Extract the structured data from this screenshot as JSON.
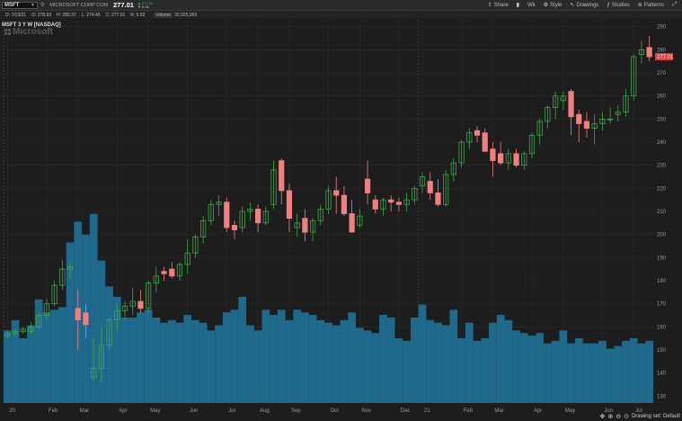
{
  "toolbar": {
    "symbol": "MSFT",
    "company": "MICROSOFT CORP COM",
    "last_price": "277.01",
    "change_up": "▲ 277.01",
    "change_pct": "▼ 0.00",
    "tools": [
      {
        "name": "share-tool",
        "icon": "share-icon",
        "glyph": "⇪",
        "label": "Share"
      },
      {
        "name": "lock-tool",
        "icon": "lock-icon",
        "glyph": "▮",
        "label": ""
      },
      {
        "name": "wk-tool",
        "icon": "",
        "glyph": "",
        "label": "Wk"
      },
      {
        "name": "style-tool",
        "icon": "gear-icon",
        "glyph": "⚙",
        "label": "Style"
      },
      {
        "name": "drawings-tool",
        "icon": "cursor-icon",
        "glyph": "↖",
        "label": "Drawings"
      },
      {
        "name": "studies-tool",
        "icon": "studies-icon",
        "glyph": "ƒ",
        "label": "Studies"
      },
      {
        "name": "patterns-tool",
        "icon": "patterns-icon",
        "glyph": "≋",
        "label": "Patterns"
      },
      {
        "name": "expand-tool",
        "icon": "expand-icon",
        "glyph": "⤢",
        "label": ""
      }
    ]
  },
  "status": {
    "date": "D: 7/19/21",
    "open": "O: 278.93",
    "high": "H: 280.37",
    "low": "L: 274.45",
    "close": "C: 277.01",
    "range": "R: 5.92",
    "volume_label": "Volume",
    "volume": "32,925,069"
  },
  "chart_title": "MSFT 3 Y W [NASDAQ]",
  "watermark": "Microsoft",
  "footer": {
    "drawing_set": "Drawing set: Default"
  },
  "colors": {
    "up": "#3fa84a",
    "down": "#f08080",
    "volume": "#1f6a8c",
    "background": "#1d1d1d",
    "price_tag": "#e0403c"
  },
  "chart_data": {
    "type": "candlestick",
    "last_price_label": "277.01",
    "ylim": [
      127,
      293
    ],
    "y_ticks": [
      130,
      140,
      150,
      160,
      170,
      180,
      190,
      200,
      210,
      220,
      230,
      240,
      250,
      260,
      270,
      280,
      290
    ],
    "x_labels": [
      "20",
      "Feb",
      "Mar",
      "Apr",
      "May",
      "Jun",
      "Jul",
      "Aug",
      "Sep",
      "Oct",
      "Nov",
      "Dec",
      "21",
      "Feb",
      "Mar",
      "Apr",
      "May",
      "Jun",
      "Jul"
    ],
    "x_label_index": [
      0,
      5,
      9,
      14,
      18,
      23,
      28,
      32,
      36,
      41,
      45,
      50,
      53,
      58,
      62,
      67,
      71,
      76,
      80
    ],
    "series": [
      {
        "o": 156,
        "h": 158,
        "l": 155,
        "c": 157
      },
      {
        "o": 157,
        "h": 159,
        "l": 156,
        "c": 158
      },
      {
        "o": 158,
        "h": 160,
        "l": 157,
        "c": 159
      },
      {
        "o": 158,
        "h": 162,
        "l": 157,
        "c": 160
      },
      {
        "o": 160,
        "h": 166,
        "l": 159,
        "c": 165
      },
      {
        "o": 165,
        "h": 172,
        "l": 163,
        "c": 170
      },
      {
        "o": 170,
        "h": 180,
        "l": 169,
        "c": 178
      },
      {
        "o": 178,
        "h": 189,
        "l": 176,
        "c": 185
      },
      {
        "o": 185,
        "h": 188,
        "l": 181,
        "c": 186
      },
      {
        "o": 168,
        "h": 176,
        "l": 150,
        "c": 163
      },
      {
        "o": 166,
        "h": 170,
        "l": 155,
        "c": 161
      },
      {
        "o": 138,
        "h": 155,
        "l": 136,
        "c": 142
      },
      {
        "o": 142,
        "h": 160,
        "l": 136,
        "c": 152
      },
      {
        "o": 152,
        "h": 164,
        "l": 150,
        "c": 163
      },
      {
        "o": 163,
        "h": 170,
        "l": 158,
        "c": 167
      },
      {
        "o": 167,
        "h": 171,
        "l": 163,
        "c": 169
      },
      {
        "o": 169,
        "h": 177,
        "l": 165,
        "c": 171
      },
      {
        "o": 171,
        "h": 176,
        "l": 166,
        "c": 168
      },
      {
        "o": 168,
        "h": 180,
        "l": 166,
        "c": 179
      },
      {
        "o": 179,
        "h": 186,
        "l": 175,
        "c": 182
      },
      {
        "o": 184,
        "h": 186,
        "l": 180,
        "c": 183
      },
      {
        "o": 185,
        "h": 188,
        "l": 181,
        "c": 182
      },
      {
        "o": 182,
        "h": 188,
        "l": 180,
        "c": 187
      },
      {
        "o": 187,
        "h": 198,
        "l": 183,
        "c": 192
      },
      {
        "o": 192,
        "h": 200,
        "l": 190,
        "c": 199
      },
      {
        "o": 199,
        "h": 208,
        "l": 196,
        "c": 206
      },
      {
        "o": 206,
        "h": 215,
        "l": 204,
        "c": 213
      },
      {
        "o": 213,
        "h": 217,
        "l": 208,
        "c": 214
      },
      {
        "o": 214,
        "h": 216,
        "l": 201,
        "c": 203
      },
      {
        "o": 204,
        "h": 206,
        "l": 198,
        "c": 202
      },
      {
        "o": 203,
        "h": 212,
        "l": 201,
        "c": 210
      },
      {
        "o": 210,
        "h": 214,
        "l": 206,
        "c": 211
      },
      {
        "o": 211,
        "h": 213,
        "l": 201,
        "c": 205
      },
      {
        "o": 205,
        "h": 212,
        "l": 204,
        "c": 210
      },
      {
        "o": 213,
        "h": 232,
        "l": 211,
        "c": 228
      },
      {
        "o": 232,
        "h": 233,
        "l": 213,
        "c": 219
      },
      {
        "o": 219,
        "h": 222,
        "l": 201,
        "c": 207
      },
      {
        "o": 203,
        "h": 209,
        "l": 199,
        "c": 205
      },
      {
        "o": 207,
        "h": 211,
        "l": 197,
        "c": 201
      },
      {
        "o": 201,
        "h": 207,
        "l": 197,
        "c": 206
      },
      {
        "o": 206,
        "h": 213,
        "l": 204,
        "c": 211
      },
      {
        "o": 211,
        "h": 221,
        "l": 209,
        "c": 219
      },
      {
        "o": 219,
        "h": 225,
        "l": 209,
        "c": 217
      },
      {
        "o": 217,
        "h": 221,
        "l": 208,
        "c": 209
      },
      {
        "o": 209,
        "h": 215,
        "l": 201,
        "c": 201
      },
      {
        "o": 204,
        "h": 211,
        "l": 203,
        "c": 208
      },
      {
        "o": 224,
        "h": 232,
        "l": 213,
        "c": 218
      },
      {
        "o": 215,
        "h": 217,
        "l": 209,
        "c": 211
      },
      {
        "o": 211,
        "h": 216,
        "l": 208,
        "c": 215
      },
      {
        "o": 215,
        "h": 217,
        "l": 210,
        "c": 214
      },
      {
        "o": 214,
        "h": 216,
        "l": 210,
        "c": 213
      },
      {
        "o": 213,
        "h": 218,
        "l": 210,
        "c": 215
      },
      {
        "o": 215,
        "h": 221,
        "l": 213,
        "c": 220
      },
      {
        "o": 221,
        "h": 227,
        "l": 218,
        "c": 225
      },
      {
        "o": 223,
        "h": 227,
        "l": 215,
        "c": 218
      },
      {
        "o": 218,
        "h": 224,
        "l": 212,
        "c": 213
      },
      {
        "o": 213,
        "h": 228,
        "l": 212,
        "c": 226
      },
      {
        "o": 226,
        "h": 233,
        "l": 223,
        "c": 231
      },
      {
        "o": 231,
        "h": 241,
        "l": 229,
        "c": 240
      },
      {
        "o": 240,
        "h": 246,
        "l": 237,
        "c": 244
      },
      {
        "o": 245,
        "h": 247,
        "l": 240,
        "c": 243
      },
      {
        "o": 244,
        "h": 246,
        "l": 236,
        "c": 236
      },
      {
        "o": 237,
        "h": 240,
        "l": 225,
        "c": 232
      },
      {
        "o": 235,
        "h": 240,
        "l": 230,
        "c": 231
      },
      {
        "o": 231,
        "h": 237,
        "l": 228,
        "c": 235
      },
      {
        "o": 235,
        "h": 237,
        "l": 229,
        "c": 230
      },
      {
        "o": 230,
        "h": 236,
        "l": 228,
        "c": 235
      },
      {
        "o": 235,
        "h": 244,
        "l": 233,
        "c": 243
      },
      {
        "o": 243,
        "h": 250,
        "l": 239,
        "c": 249
      },
      {
        "o": 249,
        "h": 256,
        "l": 246,
        "c": 255
      },
      {
        "o": 255,
        "h": 262,
        "l": 250,
        "c": 260
      },
      {
        "o": 258,
        "h": 262,
        "l": 254,
        "c": 260
      },
      {
        "o": 262,
        "h": 263,
        "l": 243,
        "c": 251
      },
      {
        "o": 252,
        "h": 254,
        "l": 240,
        "c": 248
      },
      {
        "o": 249,
        "h": 253,
        "l": 242,
        "c": 246
      },
      {
        "o": 246,
        "h": 252,
        "l": 239,
        "c": 248
      },
      {
        "o": 248,
        "h": 253,
        "l": 245,
        "c": 250
      },
      {
        "o": 250,
        "h": 255,
        "l": 248,
        "c": 250
      },
      {
        "o": 252,
        "h": 256,
        "l": 249,
        "c": 253
      },
      {
        "o": 253,
        "h": 263,
        "l": 251,
        "c": 260
      },
      {
        "o": 260,
        "h": 278,
        "l": 258,
        "c": 277
      },
      {
        "o": 278,
        "h": 284,
        "l": 274,
        "c": 280
      },
      {
        "o": 281,
        "h": 286,
        "l": 275,
        "c": 277
      }
    ],
    "volume_scale": "relative",
    "volume": [
      0.28,
      0.32,
      0.25,
      0.3,
      0.4,
      0.35,
      0.36,
      0.37,
      0.62,
      0.7,
      0.65,
      0.73,
      0.55,
      0.45,
      0.41,
      0.33,
      0.33,
      0.35,
      0.36,
      0.33,
      0.31,
      0.32,
      0.31,
      0.34,
      0.32,
      0.31,
      0.28,
      0.3,
      0.35,
      0.36,
      0.41,
      0.3,
      0.28,
      0.36,
      0.34,
      0.36,
      0.32,
      0.36,
      0.35,
      0.34,
      0.32,
      0.31,
      0.3,
      0.32,
      0.35,
      0.29,
      0.28,
      0.27,
      0.34,
      0.33,
      0.25,
      0.24,
      0.33,
      0.38,
      0.32,
      0.31,
      0.3,
      0.36,
      0.25,
      0.31,
      0.24,
      0.25,
      0.31,
      0.34,
      0.32,
      0.28,
      0.27,
      0.26,
      0.27,
      0.23,
      0.24,
      0.28,
      0.23,
      0.25,
      0.23,
      0.23,
      0.24,
      0.21,
      0.22,
      0.24,
      0.25,
      0.23,
      0.24
    ]
  }
}
